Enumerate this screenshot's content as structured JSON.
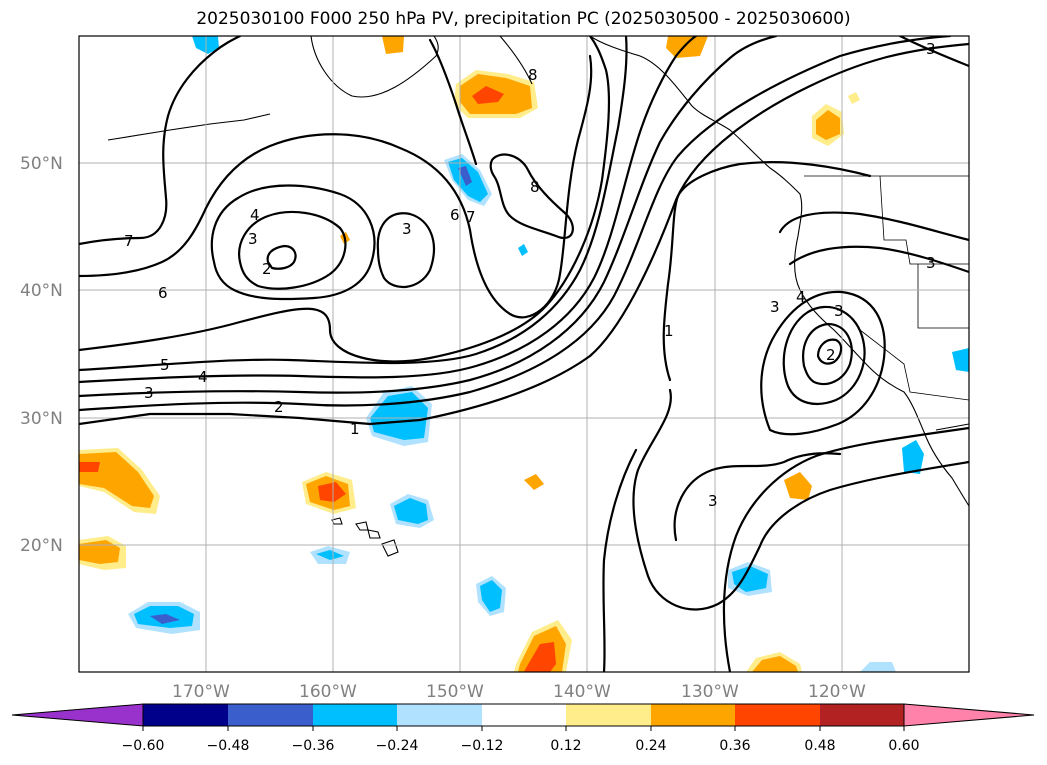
{
  "title": "2025030100 F000 250 hPa PV, precipitation PC (2025030500 - 2025030600)",
  "map": {
    "lat_labels": [
      "50°N",
      "40°N",
      "30°N",
      "20°N"
    ],
    "lon_labels": [
      "170°W",
      "160°W",
      "150°W",
      "140°W",
      "130°W",
      "120°W"
    ],
    "gridlines": true
  },
  "contour_labels": [
    "7",
    "6",
    "5",
    "4",
    "3",
    "2",
    "1",
    "4",
    "3",
    "2",
    "3",
    "6",
    "7",
    "8",
    "8",
    "1",
    "3",
    "4",
    "3",
    "2",
    "3",
    "3",
    "3"
  ],
  "colorbar": {
    "ticks": [
      "−0.60",
      "−0.48",
      "−0.36",
      "−0.24",
      "−0.12",
      "0.12",
      "0.24",
      "0.36",
      "0.48",
      "0.60"
    ],
    "colors": [
      "#9932cc",
      "#00008b",
      "#3a5fcd",
      "#00bfff",
      "#b0e2ff",
      "#ffffff",
      "#ffec8b",
      "#ffa500",
      "#ff4500",
      "#b22222",
      "#ff82ab"
    ]
  }
}
